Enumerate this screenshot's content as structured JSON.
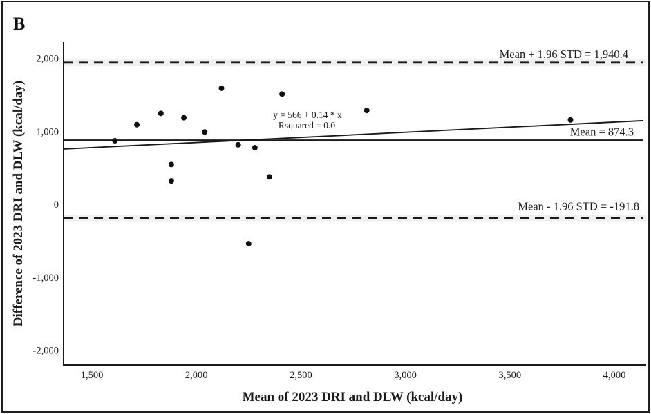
{
  "figure": {
    "panel_label": "B",
    "background": "#ffffff",
    "border_color": "#1f1f1f"
  },
  "chart_data": {
    "type": "scatter",
    "title": "",
    "xlabel": "Mean of 2023 DRI and DLW (kcal/day)",
    "ylabel": "Difference of 2023 DRI and DLW (kcal/day)",
    "x_ticks": [
      1500,
      2000,
      2500,
      3000,
      3500,
      4000
    ],
    "y_ticks": [
      -2000,
      -1000,
      0,
      1000,
      2000
    ],
    "xlim": [
      1365,
      4140
    ],
    "ylim": [
      -2215,
      2225
    ],
    "grid": false,
    "legend": false,
    "points": [
      {
        "x": 1610,
        "y": 870
      },
      {
        "x": 1715,
        "y": 1090
      },
      {
        "x": 1830,
        "y": 1245
      },
      {
        "x": 1880,
        "y": 545
      },
      {
        "x": 1880,
        "y": 320
      },
      {
        "x": 1940,
        "y": 1185
      },
      {
        "x": 2040,
        "y": 990
      },
      {
        "x": 2120,
        "y": 1590
      },
      {
        "x": 2200,
        "y": 815
      },
      {
        "x": 2250,
        "y": -540
      },
      {
        "x": 2280,
        "y": 775
      },
      {
        "x": 2350,
        "y": 375
      },
      {
        "x": 2410,
        "y": 1510
      },
      {
        "x": 2815,
        "y": 1285
      },
      {
        "x": 3790,
        "y": 1155
      }
    ],
    "reference_lines": [
      {
        "id": "upper-loa",
        "value": 1940.4,
        "label": "Mean + 1.96 STD = 1,940.4",
        "style": "dashed"
      },
      {
        "id": "mean",
        "value": 874.3,
        "label": "Mean = 874.3",
        "style": "solid"
      },
      {
        "id": "lower-loa",
        "value": -191.8,
        "label": "Mean - 1.96 STD = -191.8",
        "style": "dashed"
      }
    ],
    "regression": {
      "intercept": 566,
      "slope": 0.14,
      "equation_label": "y = 566 + 0.14 * x",
      "rsquared_label": "Rsquared = 0.0"
    },
    "point_color": "#0f0f0f",
    "line_color": "#1a1a1a",
    "band_color": "#f0f0f0"
  }
}
